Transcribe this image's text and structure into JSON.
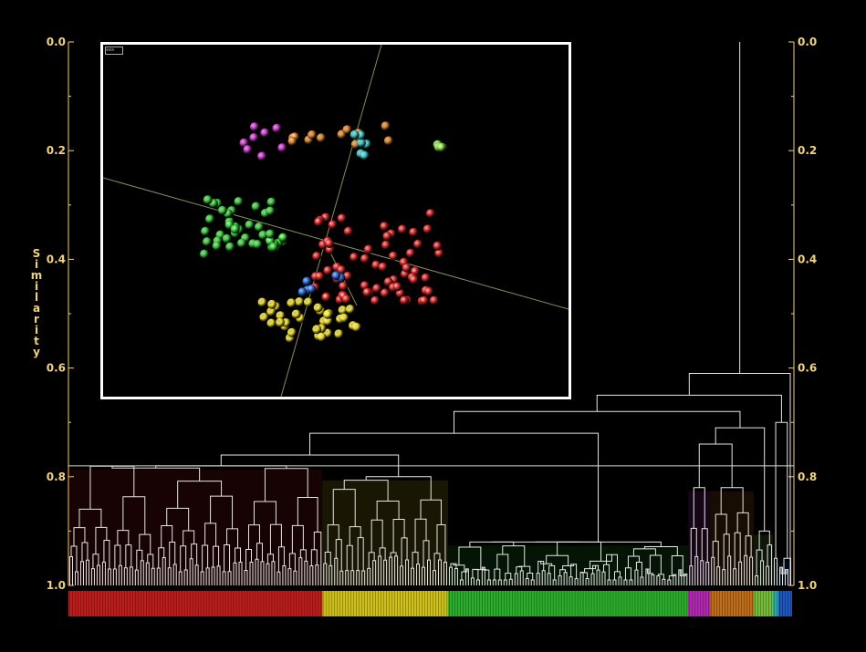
{
  "colors": {
    "background": "#000000",
    "axis_text": "#f2d27a",
    "tree_lines": "#e6e6e6",
    "threshold_line": "#d9d9c8",
    "inset_border": "#ffffff",
    "cluster_red": "#dd2222",
    "cluster_yellow": "#f2e020",
    "cluster_green": "#33cc33",
    "cluster_magenta": "#d030d0",
    "cluster_orange": "#e08020",
    "cluster_lightgreen": "#88dd44",
    "cluster_cyan": "#33c8c8",
    "cluster_blue": "#2266dd"
  },
  "axis": {
    "label": "Similarity",
    "left_ticks": [
      "0.0",
      "0.2",
      "0.4",
      "0.6",
      "0.8",
      "1.0"
    ],
    "right_ticks": [
      "0.0",
      "0.2",
      "0.4",
      "0.6",
      "0.8",
      "1.0"
    ],
    "range": [
      0.0,
      1.0
    ],
    "threshold_value": 0.78
  },
  "dendrogram": {
    "cluster_order": [
      "red",
      "yellow",
      "green",
      "magenta",
      "orange",
      "lightgreen",
      "cyan",
      "blue"
    ],
    "cluster_leaf_counts": [
      93,
      46,
      88,
      8,
      16,
      7,
      2,
      5
    ],
    "cluster_join_similarity": [
      0.78,
      0.8,
      0.92,
      0.82,
      0.82,
      0.9,
      0.95,
      0.95
    ],
    "higher_merges": [
      {
        "between": [
          "red",
          "yellow"
        ],
        "similarity": 0.76
      },
      {
        "between": [
          "red+yellow",
          "green"
        ],
        "similarity": 0.72
      },
      {
        "between": [
          "magenta",
          "orange"
        ],
        "similarity": 0.74
      },
      {
        "between": [
          "magenta+orange",
          "lightgreen"
        ],
        "similarity": 0.71
      },
      {
        "between": [
          "red+yellow+green",
          "magenta+orange+lightgreen"
        ],
        "similarity": 0.68
      },
      {
        "between": [
          "cyan",
          "blue"
        ],
        "similarity": 0.7
      },
      {
        "between": [
          "left",
          "cyan+blue"
        ],
        "similarity": 0.65
      },
      {
        "between": [
          "all",
          "outlier"
        ],
        "similarity": 0.61
      },
      {
        "between": [
          "root",
          "top"
        ],
        "similarity": 0.0
      }
    ]
  },
  "inset": {
    "tag": "≡≡≡",
    "type": "3d-scatter",
    "clusters": [
      {
        "color": "red",
        "count": 70
      },
      {
        "color": "green",
        "count": 45
      },
      {
        "color": "yellow",
        "count": 35
      },
      {
        "color": "orange",
        "count": 14
      },
      {
        "color": "magenta",
        "count": 8
      },
      {
        "color": "lightgreen",
        "count": 4
      },
      {
        "color": "cyan",
        "count": 6
      },
      {
        "color": "blue",
        "count": 6
      }
    ]
  }
}
